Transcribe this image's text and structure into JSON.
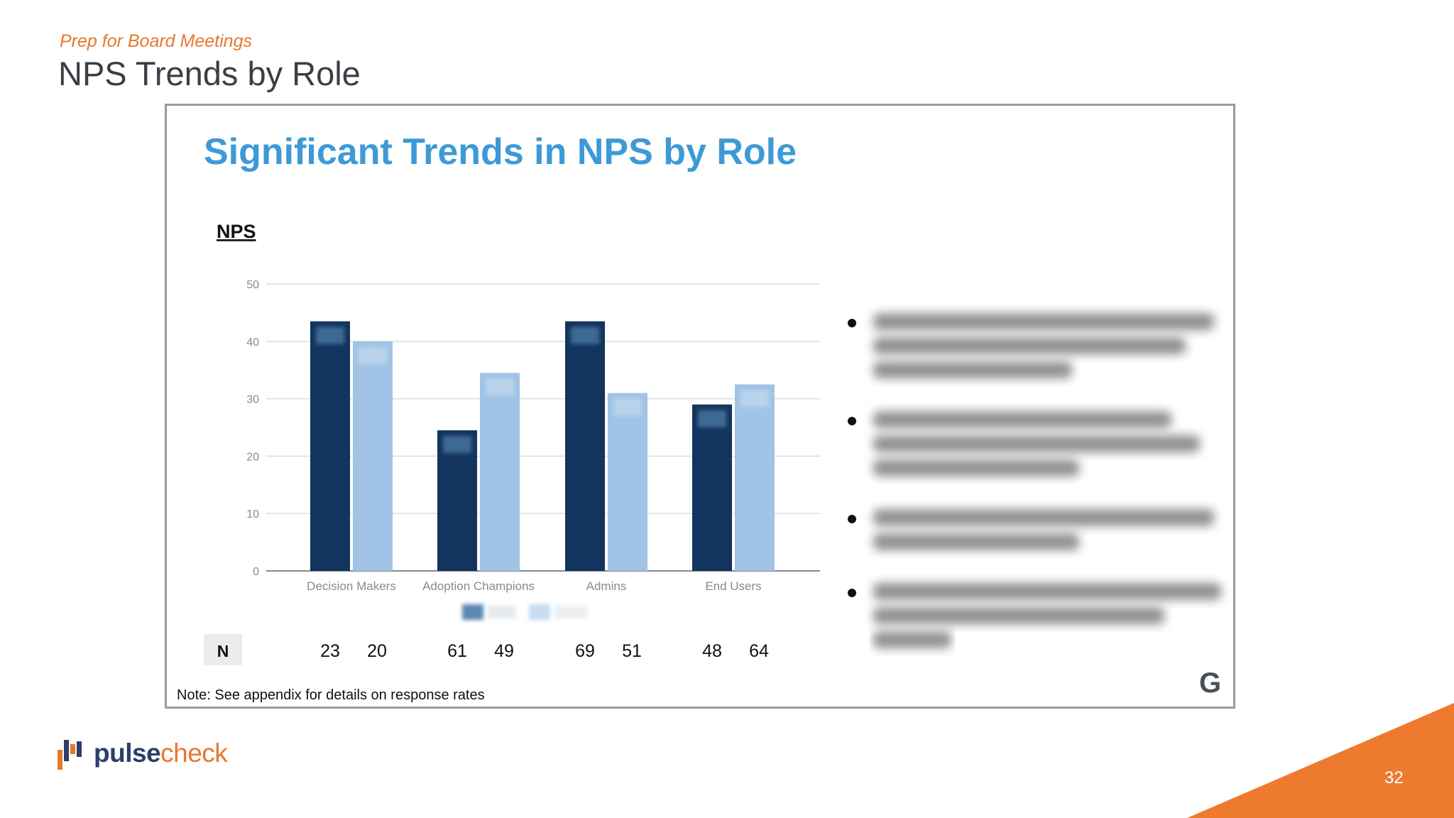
{
  "slide": {
    "kicker": "Prep for Board Meetings",
    "title": "NPS Trends by Role",
    "page_number": "32"
  },
  "logo": {
    "bold": "pulse",
    "light": "check"
  },
  "colors": {
    "accent_orange": "#ee7a2e",
    "series_dark": "#13345e",
    "series_light": "#a0c3e6",
    "chart_title_blue": "#3d9ad6"
  },
  "chart_data": {
    "type": "bar",
    "title": "Significant Trends in NPS by Role",
    "ylabel": "NPS",
    "xlabel": "",
    "ylim": [
      0,
      50
    ],
    "yticks": [
      0,
      10,
      20,
      30,
      40,
      50
    ],
    "categories": [
      "Decision Makers",
      "Adoption Champions",
      "Admins",
      "End Users"
    ],
    "series": [
      {
        "values": [
          43.5,
          24.5,
          43.5,
          29
        ],
        "color": "#13345e"
      },
      {
        "values": [
          40,
          34.5,
          31,
          32.5
        ],
        "color": "#a0c3e6"
      }
    ],
    "n_label": "N",
    "n_values": [
      [
        "23",
        "20"
      ],
      [
        "61",
        "49"
      ],
      [
        "69",
        "51"
      ],
      [
        "48",
        "64"
      ]
    ],
    "note": "Note: See appendix for details on response rates",
    "grid": true,
    "corner_logo": "G",
    "bullets_blurred": 4
  }
}
